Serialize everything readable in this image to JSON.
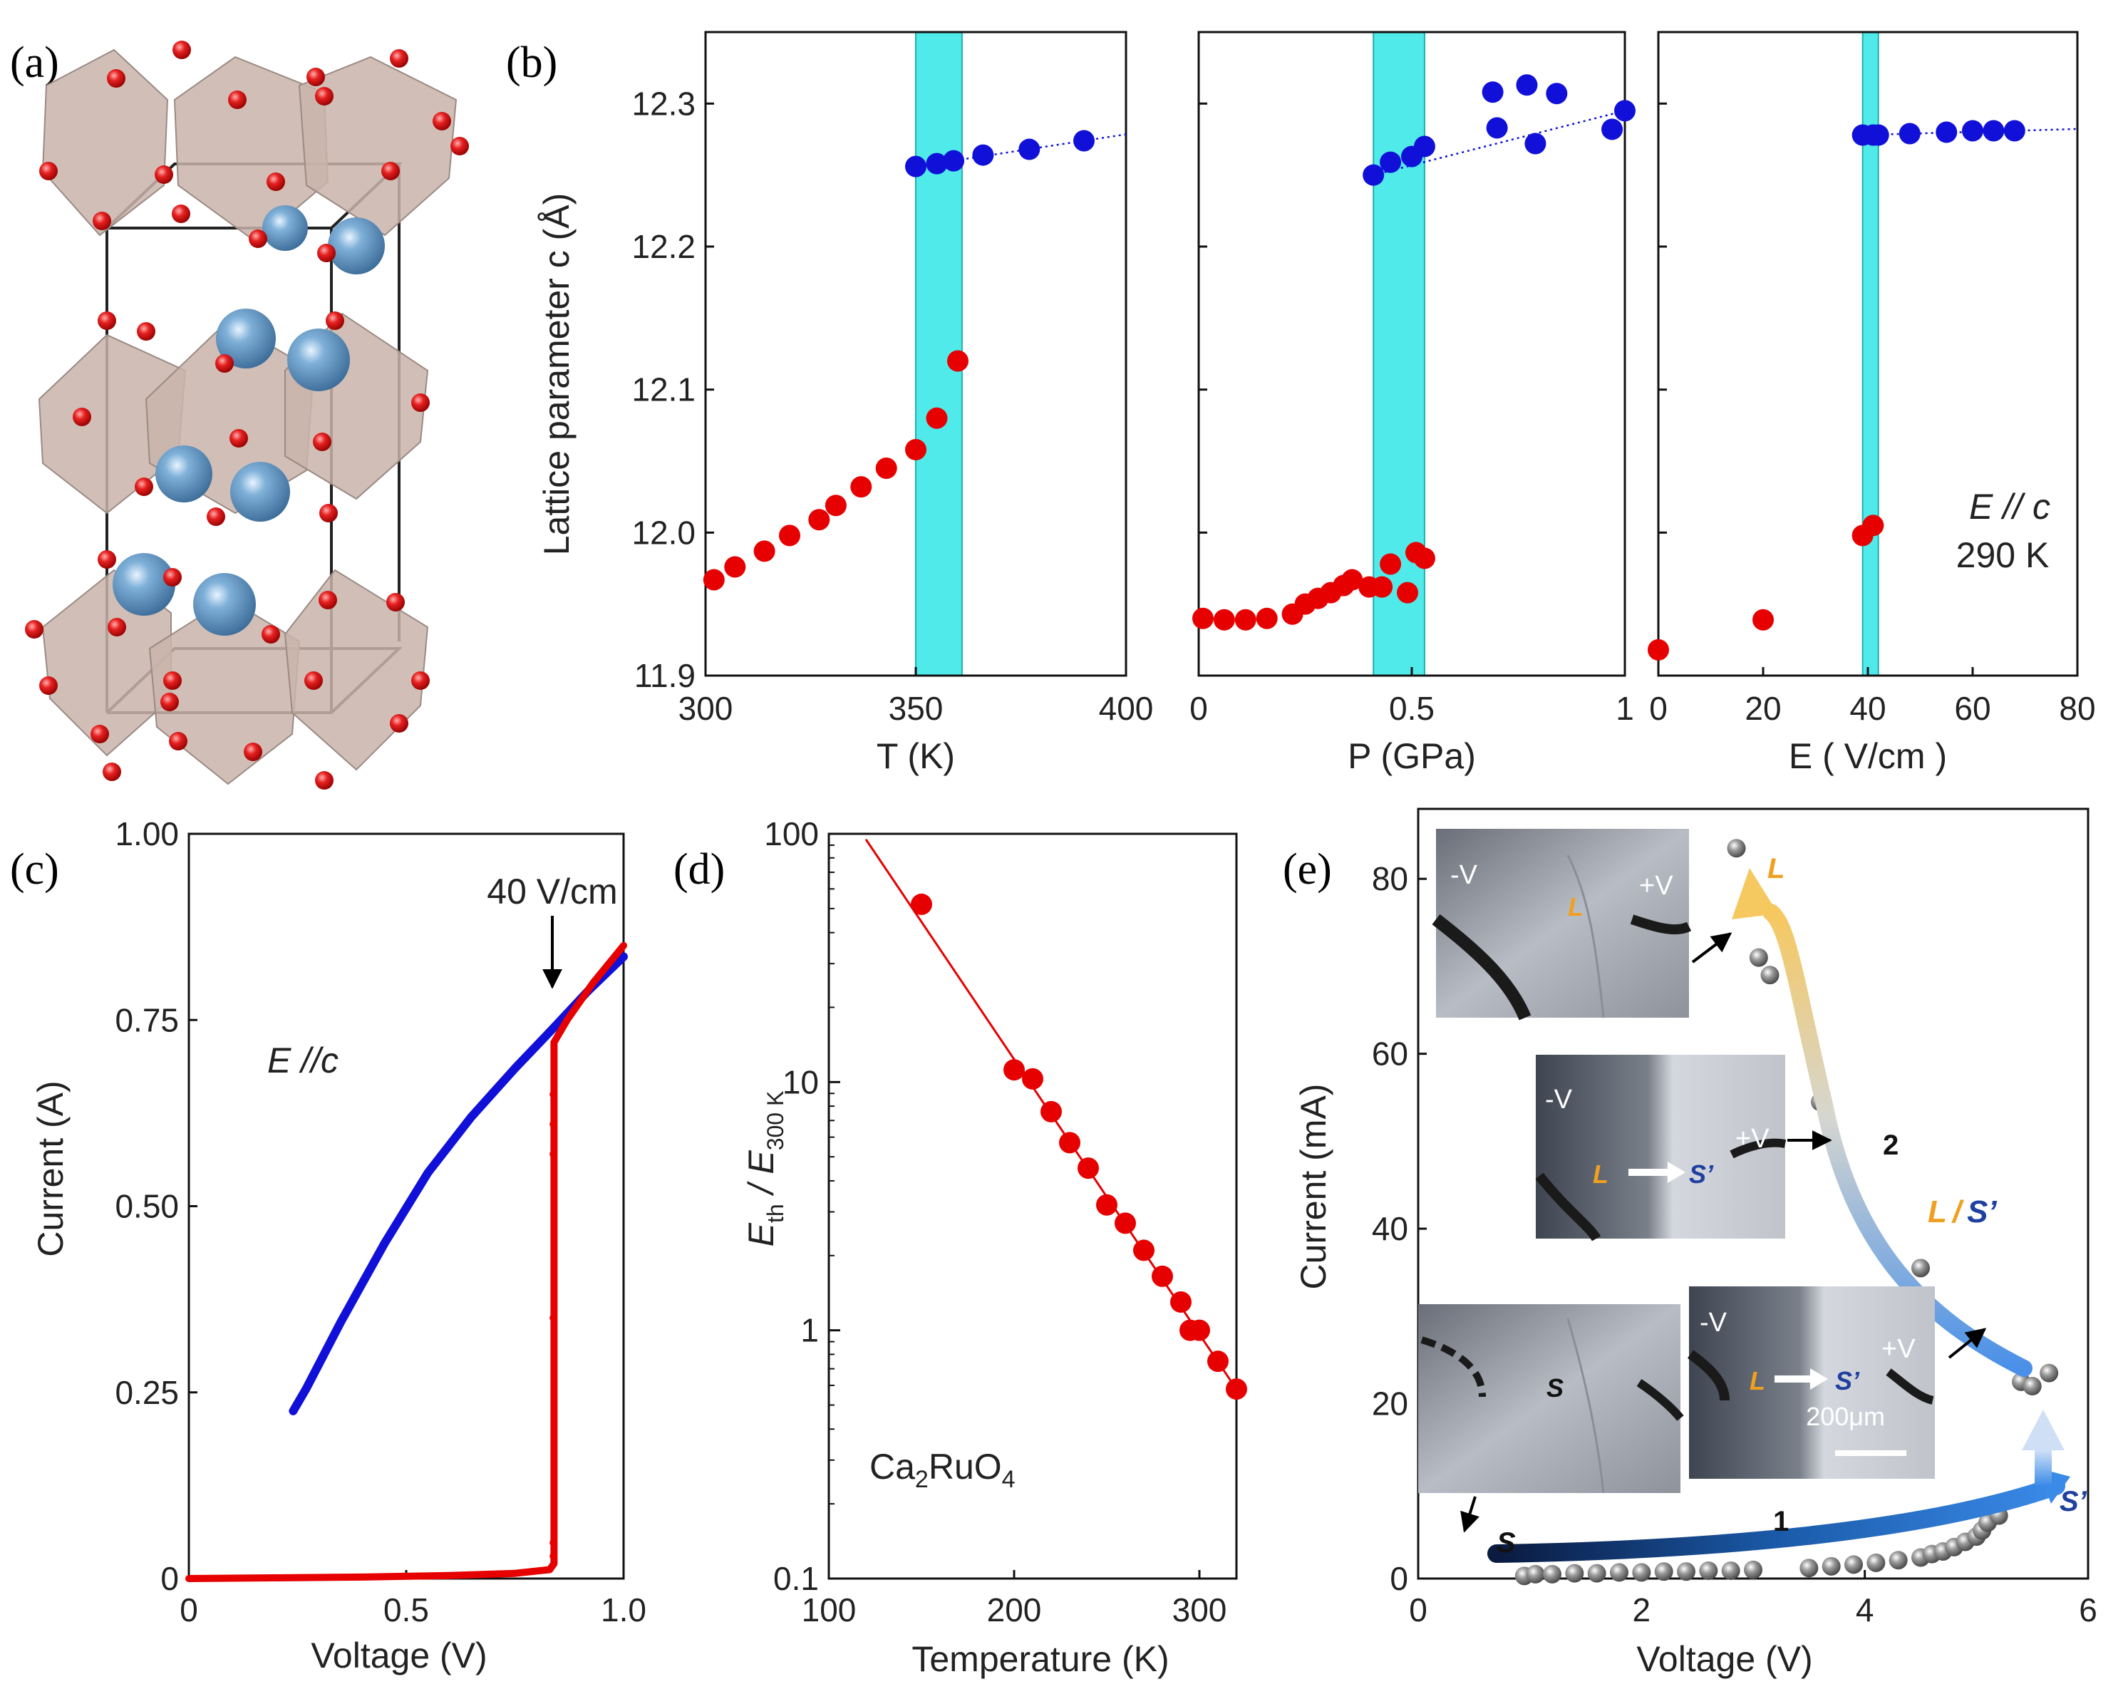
{
  "panel_labels": {
    "a": "(a)",
    "b": "(b)",
    "c": "(c)",
    "d": "(d)",
    "e": "(e)"
  },
  "colors": {
    "red": "#e60000",
    "blue": "#1010d8",
    "cyan": "#33e6e6",
    "grey_marker": "#7a7a7a",
    "orange_text": "#f0a020",
    "blue_text": "#2040a0"
  },
  "chart_data": [
    {
      "id": "b1",
      "type": "scatter",
      "ylabel": "Lattice parameter c (Å)",
      "xlabel": "T (K)",
      "xlim": [
        300,
        400
      ],
      "ylim": [
        11.9,
        12.35
      ],
      "xticks": [
        300,
        350,
        400
      ],
      "yticks": [
        11.9,
        12.0,
        12.1,
        12.2,
        12.3
      ],
      "shade": [
        350,
        361
      ],
      "series": [
        {
          "color": "red",
          "x": [
            302,
            307,
            314,
            320,
            327,
            331,
            337,
            343,
            350,
            355,
            360
          ],
          "y": [
            11.967,
            11.976,
            11.987,
            11.998,
            12.009,
            12.019,
            12.032,
            12.045,
            12.058,
            12.08,
            12.12
          ]
        },
        {
          "color": "blue",
          "x": [
            350,
            355,
            359,
            366,
            377,
            390
          ],
          "y": [
            12.256,
            12.258,
            12.26,
            12.264,
            12.268,
            12.274
          ],
          "trend": true
        }
      ]
    },
    {
      "id": "b2",
      "type": "scatter",
      "xlabel": "P (GPa)",
      "xlim": [
        0,
        1
      ],
      "ylim": [
        11.9,
        12.35
      ],
      "xticks": [
        0,
        0.5,
        1
      ],
      "yticks": [],
      "shade": [
        0.41,
        0.53
      ],
      "series": [
        {
          "color": "red",
          "x": [
            0.01,
            0.06,
            0.11,
            0.16,
            0.22,
            0.25,
            0.28,
            0.31,
            0.34,
            0.36,
            0.4,
            0.43,
            0.45,
            0.49,
            0.51,
            0.53
          ],
          "y": [
            11.94,
            11.939,
            11.939,
            11.94,
            11.943,
            11.95,
            11.954,
            11.958,
            11.963,
            11.967,
            11.962,
            11.962,
            11.978,
            11.958,
            11.986,
            11.982
          ]
        },
        {
          "color": "blue",
          "x": [
            0.41,
            0.45,
            0.5,
            0.53,
            0.69,
            0.7,
            0.77,
            0.79,
            0.84,
            0.97,
            1.0
          ],
          "y": [
            12.25,
            12.259,
            12.263,
            12.27,
            12.308,
            12.283,
            12.313,
            12.272,
            12.307,
            12.282,
            12.295
          ],
          "trend": true
        }
      ]
    },
    {
      "id": "b3",
      "type": "scatter",
      "xlabel": "E ( V/cm )",
      "xlim": [
        0,
        80
      ],
      "ylim": [
        11.9,
        12.35
      ],
      "xticks": [
        0,
        20,
        40,
        60,
        80
      ],
      "yticks": [],
      "shade": [
        39,
        42
      ],
      "annotation": [
        "E // c",
        "290 K"
      ],
      "series": [
        {
          "color": "red",
          "x": [
            0,
            20,
            39,
            41
          ],
          "y": [
            11.918,
            11.939,
            11.998,
            12.005
          ]
        },
        {
          "color": "blue",
          "x": [
            39,
            41,
            42,
            48,
            55,
            60,
            64,
            68
          ],
          "y": [
            12.278,
            12.278,
            12.278,
            12.279,
            12.28,
            12.281,
            12.281,
            12.281
          ],
          "trend": true
        }
      ]
    },
    {
      "id": "c",
      "type": "line",
      "xlabel": "Voltage (V)",
      "ylabel": "Current (A)",
      "xlim": [
        0,
        1.0
      ],
      "ylim": [
        0,
        1.0
      ],
      "xticks": [
        "0",
        "0.5",
        "1.0"
      ],
      "yticks": [
        "0",
        "0.25",
        "0.50",
        "0.75",
        "1.00"
      ],
      "annotation_arrow": "40 V/cm",
      "annotation_text": "E //c",
      "series": [
        {
          "color": "blue",
          "x": [
            0.24,
            0.27,
            0.35,
            0.45,
            0.55,
            0.65,
            0.75,
            0.84,
            0.92,
            1.0
          ],
          "y": [
            0.225,
            0.255,
            0.345,
            0.45,
            0.545,
            0.62,
            0.685,
            0.74,
            0.79,
            0.835
          ]
        },
        {
          "color": "red",
          "x": [
            0.0,
            0.2,
            0.4,
            0.6,
            0.75,
            0.83,
            0.84,
            0.84,
            0.87,
            0.93,
            1.0
          ],
          "y": [
            0.0,
            0.001,
            0.002,
            0.004,
            0.007,
            0.012,
            0.02,
            0.72,
            0.75,
            0.8,
            0.85
          ]
        },
        {
          "color": "red",
          "points": true,
          "x": [
            0.838,
            0.838,
            0.838,
            0.838,
            0.838,
            0.838
          ],
          "y": [
            0.65,
            0.61,
            0.57,
            0.35,
            0.048,
            0.03
          ]
        }
      ]
    },
    {
      "id": "d",
      "type": "scatter",
      "xlabel": "Temperature (K)",
      "ylabel": "E_th / E_300K",
      "ylabel_parts": {
        "a": "E",
        "a_sub": "th",
        "b": " / E",
        "b_sub": "300 K"
      },
      "ylog": true,
      "xlim": [
        100,
        320
      ],
      "ylim": [
        0.1,
        100
      ],
      "xticks": [
        "100",
        "200",
        "300"
      ],
      "yticks": [
        "0.1",
        "1",
        "10",
        "100"
      ],
      "annotation_parts": {
        "a": "Ca",
        "sub1": "2",
        "b": "RuO",
        "sub2": "4"
      },
      "fit": {
        "x": [
          120,
          322
        ],
        "y": [
          95,
          0.55
        ]
      },
      "series": [
        {
          "color": "red",
          "x": [
            150,
            200,
            210,
            220,
            230,
            240,
            250,
            260,
            270,
            280,
            290,
            295,
            300,
            310,
            320
          ],
          "y": [
            52,
            11.2,
            10.3,
            7.6,
            5.7,
            4.5,
            3.2,
            2.7,
            2.1,
            1.65,
            1.3,
            1.0,
            1.0,
            0.75,
            0.58
          ]
        }
      ]
    },
    {
      "id": "e",
      "type": "scatter",
      "xlabel": "Voltage (V)",
      "ylabel": "Current (mA)",
      "xlim": [
        0,
        6
      ],
      "ylim": [
        0,
        88
      ],
      "xticks": [
        "0",
        "2",
        "4",
        "6"
      ],
      "yticks": [
        "0",
        "20",
        "40",
        "60",
        "80"
      ],
      "labels": {
        "s_start": "S",
        "s_prime": "S’",
        "l_top": "L",
        "branch1": "1",
        "branch2": "2",
        "mixed_l": "L",
        "mixed_slash": "/",
        "mixed_s": "S’"
      },
      "photo_labels": {
        "minus_v": "-V",
        "plus_v": "+V",
        "l": "L",
        "s": "S",
        "s_prime": "S’",
        "scale": "200μm"
      },
      "series": [
        {
          "color": "grey",
          "x": [
            0.95,
            1.05,
            1.2,
            1.4,
            1.6,
            1.8,
            2.0,
            2.2,
            2.4,
            2.6,
            2.8,
            3.0,
            3.5,
            3.7,
            3.9,
            4.1,
            4.3,
            4.5,
            4.6,
            4.7,
            4.8,
            4.9,
            5.0,
            5.05,
            5.1,
            5.2,
            5.4,
            5.5,
            5.65,
            4.5,
            3.6,
            3.15,
            3.05,
            2.85
          ],
          "y": [
            0.3,
            0.5,
            0.5,
            0.6,
            0.6,
            0.7,
            0.7,
            0.8,
            0.8,
            0.9,
            0.9,
            1.0,
            1.2,
            1.4,
            1.6,
            1.8,
            2.1,
            2.4,
            2.8,
            3.1,
            3.6,
            4.2,
            4.8,
            5.5,
            6.4,
            7.2,
            22.5,
            22,
            23.5,
            35.5,
            54.5,
            69,
            71,
            83.5
          ]
        }
      ]
    }
  ]
}
